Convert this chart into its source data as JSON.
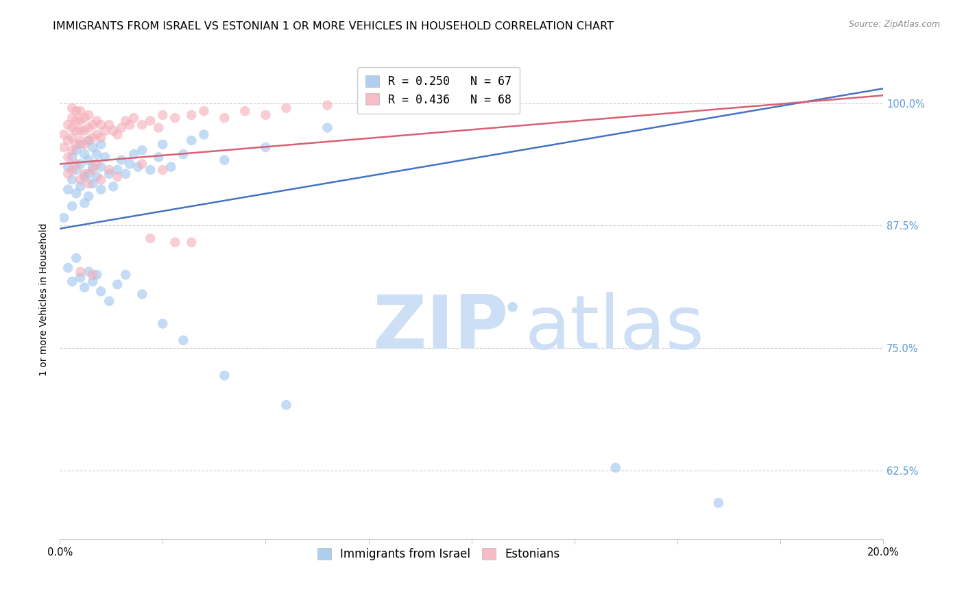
{
  "title": "IMMIGRANTS FROM ISRAEL VS ESTONIAN 1 OR MORE VEHICLES IN HOUSEHOLD CORRELATION CHART",
  "source": "Source: ZipAtlas.com",
  "ylabel": "1 or more Vehicles in Household",
  "ytick_labels": [
    "62.5%",
    "75.0%",
    "87.5%",
    "100.0%"
  ],
  "ytick_values": [
    0.625,
    0.75,
    0.875,
    1.0
  ],
  "xlim": [
    0.0,
    0.2
  ],
  "ylim": [
    0.555,
    1.045
  ],
  "legend_entries": [
    {
      "label": "R = 0.250   N = 67",
      "color": "#9bc4ed"
    },
    {
      "label": "R = 0.436   N = 68",
      "color": "#f4adb8"
    }
  ],
  "blue_scatter_x": [
    0.001,
    0.002,
    0.002,
    0.003,
    0.003,
    0.003,
    0.004,
    0.004,
    0.004,
    0.005,
    0.005,
    0.005,
    0.006,
    0.006,
    0.006,
    0.007,
    0.007,
    0.007,
    0.007,
    0.008,
    0.008,
    0.008,
    0.009,
    0.009,
    0.01,
    0.01,
    0.01,
    0.011,
    0.012,
    0.013,
    0.014,
    0.015,
    0.016,
    0.017,
    0.018,
    0.019,
    0.02,
    0.022,
    0.024,
    0.025,
    0.027,
    0.03,
    0.032,
    0.035,
    0.04,
    0.05,
    0.065,
    0.002,
    0.003,
    0.004,
    0.005,
    0.006,
    0.007,
    0.008,
    0.009,
    0.01,
    0.012,
    0.014,
    0.016,
    0.02,
    0.025,
    0.03,
    0.04,
    0.055,
    0.11,
    0.135,
    0.16
  ],
  "blue_scatter_y": [
    0.883,
    0.912,
    0.935,
    0.895,
    0.922,
    0.945,
    0.908,
    0.932,
    0.952,
    0.915,
    0.938,
    0.958,
    0.898,
    0.925,
    0.948,
    0.905,
    0.928,
    0.942,
    0.962,
    0.918,
    0.935,
    0.955,
    0.925,
    0.948,
    0.912,
    0.935,
    0.958,
    0.945,
    0.928,
    0.915,
    0.932,
    0.942,
    0.928,
    0.938,
    0.948,
    0.935,
    0.952,
    0.932,
    0.945,
    0.958,
    0.935,
    0.948,
    0.962,
    0.968,
    0.942,
    0.955,
    0.975,
    0.832,
    0.818,
    0.842,
    0.822,
    0.812,
    0.828,
    0.818,
    0.825,
    0.808,
    0.798,
    0.815,
    0.825,
    0.805,
    0.775,
    0.758,
    0.722,
    0.692,
    0.792,
    0.628,
    0.592
  ],
  "pink_scatter_x": [
    0.001,
    0.001,
    0.002,
    0.002,
    0.002,
    0.003,
    0.003,
    0.003,
    0.003,
    0.003,
    0.004,
    0.004,
    0.004,
    0.004,
    0.005,
    0.005,
    0.005,
    0.005,
    0.006,
    0.006,
    0.006,
    0.007,
    0.007,
    0.007,
    0.008,
    0.008,
    0.009,
    0.009,
    0.01,
    0.01,
    0.011,
    0.012,
    0.013,
    0.014,
    0.015,
    0.016,
    0.017,
    0.018,
    0.02,
    0.022,
    0.024,
    0.025,
    0.028,
    0.032,
    0.035,
    0.04,
    0.045,
    0.05,
    0.055,
    0.065,
    0.002,
    0.003,
    0.004,
    0.005,
    0.006,
    0.007,
    0.008,
    0.009,
    0.01,
    0.012,
    0.014,
    0.02,
    0.025,
    0.022,
    0.028,
    0.032,
    0.005,
    0.008
  ],
  "pink_scatter_y": [
    0.955,
    0.968,
    0.945,
    0.962,
    0.978,
    0.952,
    0.965,
    0.975,
    0.985,
    0.995,
    0.958,
    0.972,
    0.982,
    0.992,
    0.962,
    0.972,
    0.982,
    0.992,
    0.958,
    0.972,
    0.985,
    0.962,
    0.975,
    0.988,
    0.965,
    0.978,
    0.968,
    0.982,
    0.965,
    0.978,
    0.972,
    0.978,
    0.972,
    0.968,
    0.975,
    0.982,
    0.978,
    0.985,
    0.978,
    0.982,
    0.975,
    0.988,
    0.985,
    0.988,
    0.992,
    0.985,
    0.992,
    0.988,
    0.995,
    0.998,
    0.928,
    0.932,
    0.938,
    0.922,
    0.928,
    0.918,
    0.932,
    0.938,
    0.922,
    0.932,
    0.925,
    0.938,
    0.932,
    0.862,
    0.858,
    0.858,
    0.828,
    0.825
  ],
  "blue_line_x": [
    0.0,
    0.2
  ],
  "blue_line_y": [
    0.872,
    1.015
  ],
  "pink_line_x": [
    0.0,
    0.2
  ],
  "pink_line_y": [
    0.938,
    1.008
  ],
  "scatter_size": 110,
  "blue_color": "#9bc4ed",
  "pink_color": "#f4adb8",
  "blue_line_color": "#4472c4",
  "pink_line_color": "#d95f72",
  "watermark_zip": "ZIP",
  "watermark_atlas": "atlas",
  "watermark_color": "#ccdff5",
  "grid_color": "#cccccc",
  "title_fontsize": 11.5,
  "axis_label_fontsize": 10,
  "tick_fontsize": 10.5,
  "legend_fontsize": 12,
  "right_axis_color": "#5b9bd5"
}
